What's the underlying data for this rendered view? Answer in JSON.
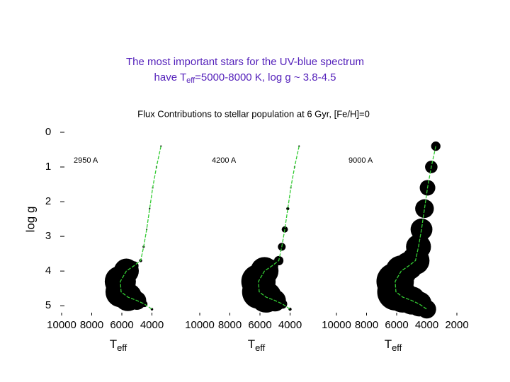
{
  "title_line1": "The most important stars for the UV-blue spectrum",
  "title_line2": {
    "pre": "have T",
    "sub": "eff",
    "post": "=5000-8000 K, log g ~ 3.8-4.5"
  },
  "subtitle": "Flux Contributions to stellar population at 6 Gyr, [Fe/H]=0",
  "chart_data": [
    {
      "type": "scatter",
      "annotation": "2950 A",
      "ylabel": "log g",
      "xlabel": {
        "main": "T",
        "sub": "eff"
      },
      "color": "#33cc33",
      "x": [
        3400,
        3700,
        3950,
        4150,
        4350,
        4550,
        4750,
        5200,
        5700,
        6100,
        6050,
        5600,
        5000,
        4500,
        4000
      ],
      "y": [
        0.4,
        1.0,
        1.6,
        2.2,
        2.8,
        3.3,
        3.7,
        3.85,
        4.0,
        4.3,
        4.6,
        4.75,
        4.85,
        4.95,
        5.1
      ],
      "sizes": [
        0.5,
        0.5,
        0.5,
        0.5,
        0.5,
        0.7,
        1,
        3,
        8,
        10,
        10,
        9,
        6,
        2,
        0.8
      ],
      "xlim": [
        10000,
        2000
      ],
      "ylim": [
        0,
        5.2
      ],
      "xticks": [
        10000,
        8000,
        6000,
        4000
      ],
      "yticks": [
        0,
        1,
        2,
        3,
        4,
        5
      ]
    },
    {
      "type": "scatter",
      "annotation": "4200 A",
      "xlabel": {
        "main": "T",
        "sub": "eff"
      },
      "color": "#33cc33",
      "x": [
        3400,
        3700,
        3950,
        4150,
        4350,
        4550,
        4750,
        5200,
        5700,
        6100,
        6050,
        5600,
        5000,
        4500,
        4000
      ],
      "y": [
        0.4,
        1.0,
        1.6,
        2.2,
        2.8,
        3.3,
        3.7,
        3.85,
        4.0,
        4.3,
        4.6,
        4.75,
        4.85,
        4.95,
        5.1
      ],
      "sizes": [
        0.5,
        0.5,
        0.5,
        1,
        2,
        2.5,
        3,
        4,
        9,
        11,
        11,
        10,
        7,
        3,
        1
      ],
      "xlim": [
        10000,
        2000
      ],
      "ylim": [
        0,
        5.2
      ],
      "xticks": [
        10000,
        8000,
        6000,
        4000
      ]
    },
    {
      "type": "scatter",
      "annotation": "9000 A",
      "xlabel": {
        "main": "T",
        "sub": "eff"
      },
      "color": "#33cc33",
      "x": [
        3400,
        3700,
        3950,
        4150,
        4350,
        4550,
        4750,
        5200,
        5700,
        6100,
        6050,
        5600,
        5000,
        4500,
        4000
      ],
      "y": [
        0.4,
        1.0,
        1.6,
        2.2,
        2.8,
        3.3,
        3.7,
        3.85,
        4.0,
        4.3,
        4.6,
        4.75,
        4.85,
        4.95,
        5.1
      ],
      "sizes": [
        3,
        4,
        5,
        6,
        7,
        8,
        9,
        9,
        10,
        12,
        12,
        10,
        9,
        8,
        6
      ],
      "xlim": [
        10000,
        2000
      ],
      "ylim": [
        0,
        5.2
      ],
      "xticks": [
        10000,
        8000,
        6000,
        4000,
        2000
      ]
    }
  ]
}
